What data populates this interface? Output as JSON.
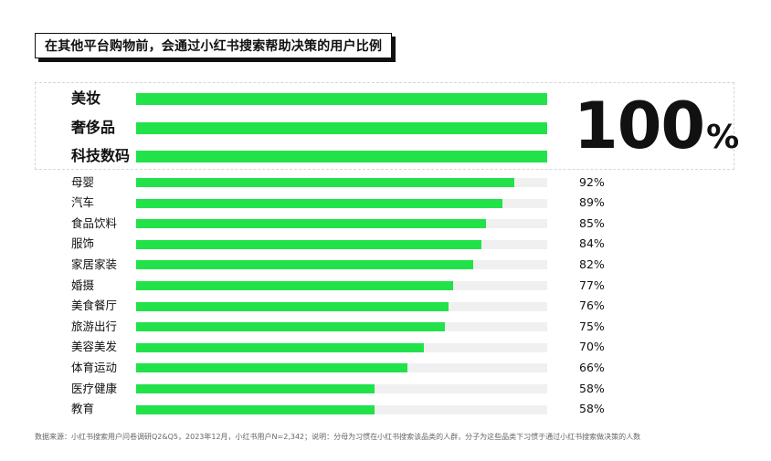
{
  "chart_data": {
    "type": "bar",
    "orientation": "horizontal",
    "title": "在其他平台购物前，会通过小红书搜索帮助决策的用户比例",
    "unit": "%",
    "xlim": [
      0,
      100
    ],
    "highlight": {
      "value": "100",
      "unit": "%"
    },
    "categories": [
      "美妆",
      "奢侈品",
      "科技数码",
      "母婴",
      "汽车",
      "食品饮料",
      "服饰",
      "家居家装",
      "婚摄",
      "美食餐厅",
      "旅游出行",
      "美容美发",
      "体育运动",
      "医疗健康",
      "教育"
    ],
    "values": [
      100,
      100,
      100,
      92,
      89,
      85,
      84,
      82,
      77,
      76,
      75,
      70,
      66,
      58,
      58
    ],
    "value_labels": [
      "",
      "",
      "",
      "92%",
      "89%",
      "85%",
      "84%",
      "82%",
      "77%",
      "76%",
      "75%",
      "70%",
      "66%",
      "58%",
      "58%"
    ],
    "colors": {
      "bar": "#22e24a",
      "track": "#f0f0f0"
    }
  },
  "footnote": "数据来源：小红书搜索用户问卷调研Q2&Q5，2023年12月，小红书用户N=2,342；说明：分母为习惯在小红书搜索该品类的人群，分子为这些品类下习惯于通过小红书搜索做决策的人数"
}
